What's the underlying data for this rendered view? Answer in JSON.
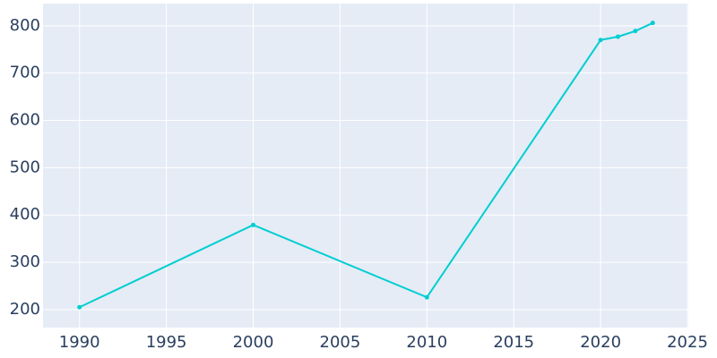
{
  "chart_data": {
    "type": "line",
    "x": [
      1990,
      2000,
      2010,
      2020,
      2021,
      2022,
      2023
    ],
    "series": [
      {
        "color": "#00ced1",
        "values": [
          205,
          379,
          226,
          770,
          777,
          789,
          806
        ]
      }
    ],
    "xlim": [
      1987.9,
      2025.05
    ],
    "xticks": [
      1990,
      1995,
      2000,
      2005,
      2010,
      2015,
      2020,
      2025
    ],
    "ylim": [
      162,
      847
    ],
    "yticks": [
      200,
      300,
      400,
      500,
      600,
      700,
      800
    ],
    "grid": true
  }
}
